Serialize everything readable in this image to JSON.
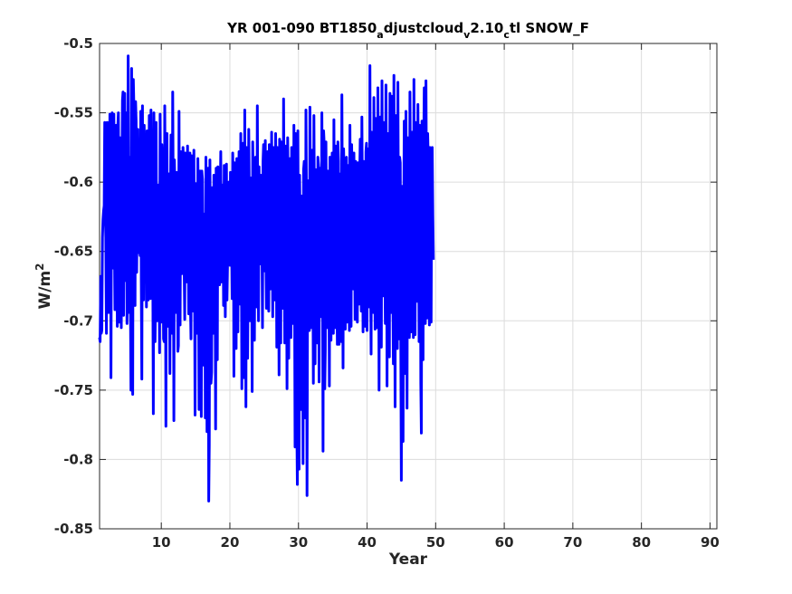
{
  "title": {
    "part1": "YR 001-090 BT1850",
    "sub1": "a",
    "part2": "djustcloud",
    "sub2": "v",
    "part3": "2.10",
    "sub3": "c",
    "part4": "tl SNOW_F"
  },
  "xlabel": "Year",
  "ylabel": {
    "base": "W/m",
    "sup": "2"
  },
  "colors": {
    "line": "#0000ff",
    "axes": "#262626",
    "grid": "#dcdcdc"
  },
  "chart_data": {
    "type": "line",
    "xlim": [
      1,
      91
    ],
    "ylim": [
      -0.85,
      -0.5
    ],
    "grid": true,
    "x_ticks": [
      10,
      20,
      30,
      40,
      50,
      60,
      70,
      80,
      90
    ],
    "x_tick_labels": [
      "10",
      "20",
      "30",
      "40",
      "50",
      "60",
      "70",
      "80",
      "90"
    ],
    "y_ticks": [
      -0.85,
      -0.8,
      -0.75,
      -0.7,
      -0.65,
      -0.6,
      -0.55,
      -0.5
    ],
    "y_tick_labels": [
      "-0.85",
      "-0.8",
      "-0.75",
      "-0.7",
      "-0.65",
      "-0.6",
      "-0.55",
      "-0.5"
    ],
    "x_start": 1,
    "x_step": 0.0833333,
    "values": [
      -0.712,
      -0.715,
      -0.668,
      -0.709,
      -0.707,
      -0.64,
      -0.627,
      -0.621,
      -0.617,
      -0.557,
      -0.621,
      -0.64,
      -0.709,
      -0.557,
      -0.557,
      -0.64,
      -0.694,
      -0.685,
      -0.551,
      -0.568,
      -0.741,
      -0.585,
      -0.55,
      -0.65,
      -0.662,
      -0.551,
      -0.64,
      -0.692,
      -0.686,
      -0.559,
      -0.566,
      -0.704,
      -0.56,
      -0.55,
      -0.667,
      -0.701,
      -0.568,
      -0.579,
      -0.705,
      -0.6,
      -0.541,
      -0.535,
      -0.696,
      -0.575,
      -0.536,
      -0.671,
      -0.625,
      -0.55,
      -0.702,
      -0.665,
      -0.509,
      -0.61,
      -0.694,
      -0.582,
      -0.684,
      -0.75,
      -0.518,
      -0.623,
      -0.753,
      -0.526,
      -0.545,
      -0.632,
      -0.689,
      -0.542,
      -0.556,
      -0.665,
      -0.611,
      -0.562,
      -0.626,
      -0.651,
      -0.584,
      -0.653,
      -0.549,
      -0.672,
      -0.742,
      -0.545,
      -0.665,
      -0.685,
      -0.559,
      -0.6,
      -0.65,
      -0.589,
      -0.69,
      -0.563,
      -0.639,
      -0.685,
      -0.662,
      -0.552,
      -0.669,
      -0.684,
      -0.548,
      -0.61,
      -0.651,
      -0.643,
      -0.767,
      -0.55,
      -0.598,
      -0.715,
      -0.685,
      -0.557,
      -0.67,
      -0.7,
      -0.612,
      -0.602,
      -0.641,
      -0.723,
      -0.551,
      -0.628,
      -0.701,
      -0.573,
      -0.59,
      -0.645,
      -0.713,
      -0.715,
      -0.545,
      -0.614,
      -0.776,
      -0.575,
      -0.565,
      -0.704,
      -0.69,
      -0.594,
      -0.631,
      -0.738,
      -0.613,
      -0.566,
      -0.653,
      -0.709,
      -0.535,
      -0.625,
      -0.772,
      -0.584,
      -0.61,
      -0.644,
      -0.694,
      -0.593,
      -0.594,
      -0.722,
      -0.718,
      -0.549,
      -0.692,
      -0.703,
      -0.578,
      -0.591,
      -0.666,
      -0.638,
      -0.575,
      -0.588,
      -0.665,
      -0.699,
      -0.579,
      -0.624,
      -0.648,
      -0.672,
      -0.574,
      -0.627,
      -0.695,
      -0.605,
      -0.579,
      -0.688,
      -0.713,
      -0.581,
      -0.617,
      -0.681,
      -0.693,
      -0.577,
      -0.643,
      -0.768,
      -0.601,
      -0.608,
      -0.66,
      -0.709,
      -0.583,
      -0.619,
      -0.764,
      -0.625,
      -0.592,
      -0.637,
      -0.769,
      -0.592,
      -0.598,
      -0.664,
      -0.732,
      -0.623,
      -0.626,
      -0.77,
      -0.582,
      -0.662,
      -0.78,
      -0.708,
      -0.59,
      -0.83,
      -0.789,
      -0.584,
      -0.649,
      -0.745,
      -0.737,
      -0.604,
      -0.653,
      -0.709,
      -0.595,
      -0.635,
      -0.654,
      -0.778,
      -0.59,
      -0.612,
      -0.728,
      -0.589,
      -0.61,
      -0.642,
      -0.674,
      -0.616,
      -0.578,
      -0.672,
      -0.667,
      -0.602,
      -0.623,
      -0.689,
      -0.588,
      -0.64,
      -0.697,
      -0.63,
      -0.587,
      -0.685,
      -0.654,
      -0.622,
      -0.6,
      -0.638,
      -0.66,
      -0.593,
      -0.617,
      -0.639,
      -0.684,
      -0.579,
      -0.607,
      -0.74,
      -0.586,
      -0.592,
      -0.641,
      -0.72,
      -0.583,
      -0.614,
      -0.708,
      -0.63,
      -0.578,
      -0.668,
      -0.688,
      -0.565,
      -0.637,
      -0.749,
      -0.588,
      -0.572,
      -0.703,
      -0.741,
      -0.548,
      -0.663,
      -0.762,
      -0.575,
      -0.584,
      -0.727,
      -0.658,
      -0.562,
      -0.609,
      -0.7,
      -0.604,
      -0.597,
      -0.649,
      -0.751,
      -0.571,
      -0.606,
      -0.679,
      -0.714,
      -0.6,
      -0.582,
      -0.668,
      -0.69,
      -0.545,
      -0.637,
      -0.7,
      -0.589,
      -0.645,
      -0.659,
      -0.595,
      -0.607,
      -0.632,
      -0.705,
      -0.585,
      -0.573,
      -0.66,
      -0.664,
      -0.57,
      -0.655,
      -0.691,
      -0.6,
      -0.578,
      -0.675,
      -0.693,
      -0.573,
      -0.621,
      -0.677,
      -0.654,
      -0.564,
      -0.623,
      -0.697,
      -0.575,
      -0.634,
      -0.639,
      -0.685,
      -0.565,
      -0.617,
      -0.719,
      -0.575,
      -0.6,
      -0.643,
      -0.739,
      -0.569,
      -0.586,
      -0.716,
      -0.571,
      -0.598,
      -0.65,
      -0.691,
      -0.54,
      -0.635,
      -0.716,
      -0.574,
      -0.586,
      -0.648,
      -0.749,
      -0.568,
      -0.606,
      -0.727,
      -0.6,
      -0.583,
      -0.685,
      -0.712,
      -0.575,
      -0.628,
      -0.674,
      -0.702,
      -0.559,
      -0.652,
      -0.791,
      -0.565,
      -0.613,
      -0.771,
      -0.818,
      -0.563,
      -0.68,
      -0.807,
      -0.595,
      -0.63,
      -0.764,
      -0.739,
      -0.61,
      -0.655,
      -0.803,
      -0.591,
      -0.585,
      -0.699,
      -0.77,
      -0.548,
      -0.617,
      -0.826,
      -0.652,
      -0.599,
      -0.676,
      -0.707,
      -0.546,
      -0.62,
      -0.705,
      -0.586,
      -0.577,
      -0.638,
      -0.745,
      -0.552,
      -0.624,
      -0.731,
      -0.591,
      -0.612,
      -0.655,
      -0.716,
      -0.582,
      -0.588,
      -0.744,
      -0.604,
      -0.59,
      -0.682,
      -0.697,
      -0.55,
      -0.643,
      -0.794,
      -0.563,
      -0.573,
      -0.749,
      -0.721,
      -0.571,
      -0.633,
      -0.705,
      -0.592,
      -0.609,
      -0.652,
      -0.747,
      -0.582,
      -0.595,
      -0.714,
      -0.623,
      -0.579,
      -0.682,
      -0.709,
      -0.555,
      -0.648,
      -0.705,
      -0.574,
      -0.609,
      -0.67,
      -0.717,
      -0.571,
      -0.585,
      -0.717,
      -0.594,
      -0.6,
      -0.662,
      -0.715,
      -0.537,
      -0.641,
      -0.734,
      -0.576,
      -0.6,
      -0.655,
      -0.706,
      -0.585,
      -0.582,
      -0.701,
      -0.616,
      -0.588,
      -0.659,
      -0.707,
      -0.559,
      -0.635,
      -0.704,
      -0.573,
      -0.604,
      -0.662,
      -0.677,
      -0.579,
      -0.631,
      -0.699,
      -0.585,
      -0.631,
      -0.646,
      -0.701,
      -0.586,
      -0.607,
      -0.688,
      -0.599,
      -0.569,
      -0.633,
      -0.693,
      -0.553,
      -0.627,
      -0.708,
      -0.585,
      -0.598,
      -0.656,
      -0.704,
      -0.578,
      -0.572,
      -0.707,
      -0.601,
      -0.576,
      -0.663,
      -0.69,
      -0.516,
      -0.651,
      -0.724,
      -0.564,
      -0.613,
      -0.662,
      -0.694,
      -0.539,
      -0.617,
      -0.706,
      -0.554,
      -0.573,
      -0.633,
      -0.705,
      -0.532,
      -0.601,
      -0.75,
      -0.577,
      -0.553,
      -0.656,
      -0.719,
      -0.527,
      -0.634,
      -0.682,
      -0.557,
      -0.605,
      -0.648,
      -0.702,
      -0.53,
      -0.595,
      -0.747,
      -0.579,
      -0.565,
      -0.684,
      -0.726,
      -0.536,
      -0.612,
      -0.694,
      -0.538,
      -0.564,
      -0.667,
      -0.731,
      -0.523,
      -0.616,
      -0.762,
      -0.565,
      -0.552,
      -0.703,
      -0.72,
      -0.528,
      -0.64,
      -0.713,
      -0.582,
      -0.586,
      -0.715,
      -0.815,
      -0.603,
      -0.623,
      -0.787,
      -0.644,
      -0.556,
      -0.684,
      -0.738,
      -0.549,
      -0.626,
      -0.763,
      -0.568,
      -0.589,
      -0.67,
      -0.712,
      -0.535,
      -0.608,
      -0.708,
      -0.582,
      -0.564,
      -0.637,
      -0.712,
      -0.526,
      -0.652,
      -0.71,
      -0.557,
      -0.593,
      -0.64,
      -0.686,
      -0.544,
      -0.611,
      -0.715,
      -0.559,
      -0.571,
      -0.745,
      -0.781,
      -0.556,
      -0.618,
      -0.728,
      -0.583,
      -0.532,
      -0.665,
      -0.702,
      -0.527,
      -0.606,
      -0.698,
      -0.565,
      -0.582,
      -0.644,
      -0.703,
      -0.575,
      -0.578,
      -0.701,
      -0.599,
      -0.575,
      -0.625,
      -0.656
    ]
  }
}
